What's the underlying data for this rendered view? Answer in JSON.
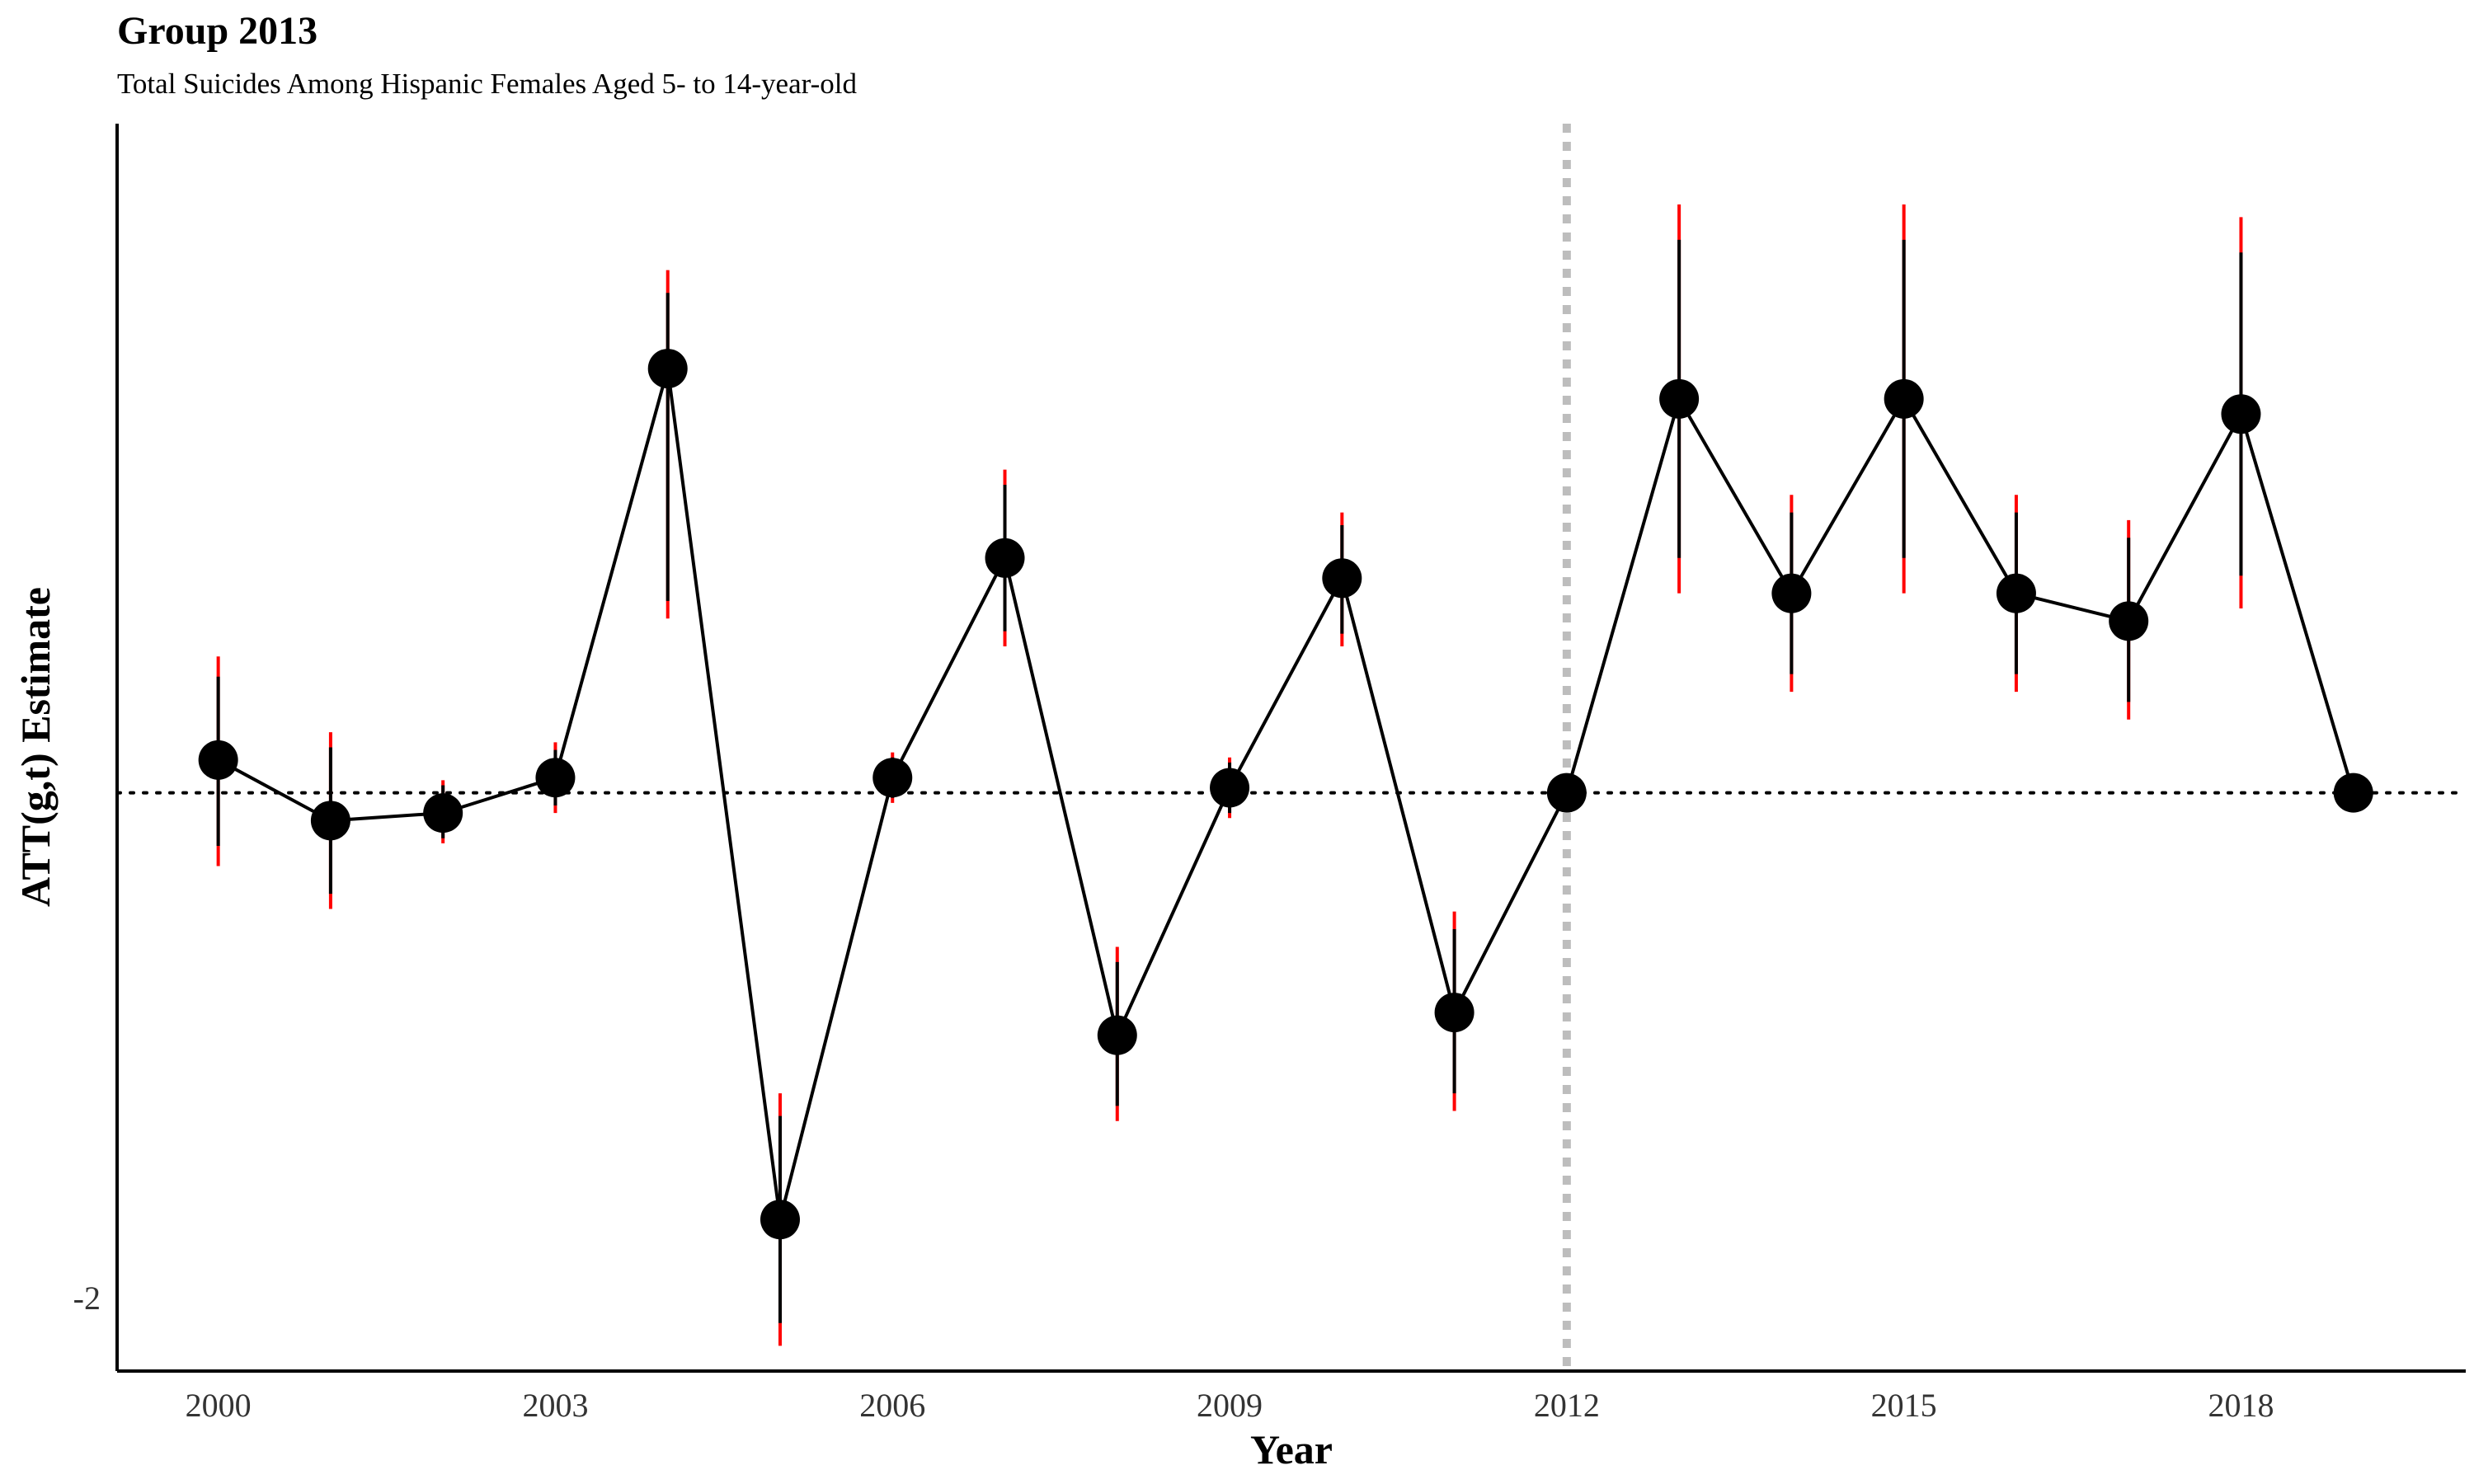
{
  "chart_data": {
    "type": "line",
    "title": "Group 2013",
    "subtitle": "Total Suicides Among Hispanic Females Aged 5- to 14-year-old",
    "xlabel": "Year",
    "ylabel": "ATT(g,t) Estimate",
    "xlim": [
      1999.1,
      2020.0
    ],
    "ylim": [
      -2.29,
      2.65
    ],
    "x_ticks": [
      2000,
      2003,
      2006,
      2009,
      2012,
      2015,
      2018
    ],
    "y_ticks": [
      -2
    ],
    "y_tick_labels": [
      "-2"
    ],
    "reference_lines": {
      "horizontal_y": 0,
      "vertical_x": 2012
    },
    "series": [
      {
        "x": [
          2000,
          2001,
          2002,
          2003,
          2004,
          2005,
          2006,
          2007,
          2008,
          2009,
          2010,
          2011,
          2012,
          2013,
          2014,
          2015,
          2016,
          2017,
          2018,
          2019
        ],
        "y": [
          0.13,
          -0.11,
          -0.08,
          0.06,
          1.68,
          -1.69,
          0.06,
          0.93,
          -0.96,
          0.02,
          0.85,
          -0.87,
          0.0,
          1.56,
          0.79,
          1.56,
          0.79,
          0.68,
          1.5,
          0.0
        ],
        "ci_lower": [
          -0.29,
          -0.46,
          -0.2,
          -0.08,
          0.69,
          -2.19,
          -0.04,
          0.58,
          -1.3,
          -0.1,
          0.58,
          -1.26,
          0.0,
          0.79,
          0.4,
          0.79,
          0.4,
          0.29,
          0.73,
          0.0
        ],
        "ci_upper": [
          0.54,
          0.24,
          0.05,
          0.2,
          2.07,
          -1.19,
          0.16,
          1.28,
          -0.61,
          0.14,
          1.11,
          -0.47,
          0.0,
          2.33,
          1.18,
          2.33,
          1.18,
          1.08,
          2.28,
          0.0
        ],
        "band_lower": [
          -0.21,
          -0.4,
          -0.18,
          -0.05,
          0.76,
          -2.1,
          -0.02,
          0.64,
          -1.24,
          -0.08,
          0.63,
          -1.19,
          0.0,
          0.93,
          0.47,
          0.93,
          0.47,
          0.36,
          0.86,
          0.0
        ],
        "band_upper": [
          0.46,
          0.18,
          0.03,
          0.17,
          1.98,
          -1.28,
          0.14,
          1.22,
          -0.67,
          0.12,
          1.06,
          -0.54,
          0.0,
          2.19,
          1.11,
          2.19,
          1.11,
          1.01,
          2.14,
          0.0
        ]
      }
    ],
    "colors": {
      "line": "#000000",
      "point": "#000000",
      "ci": "#ff0000",
      "band": "#000000",
      "vline": "#bdbdbd",
      "axis": "#000000"
    },
    "grid": false,
    "legend": "none"
  }
}
